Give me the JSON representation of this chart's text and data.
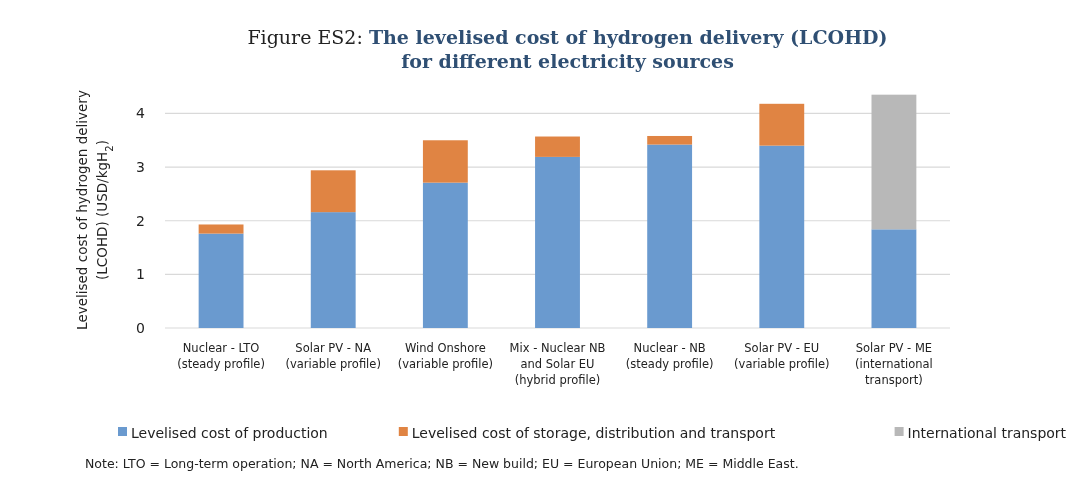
{
  "chart_data": {
    "type": "bar",
    "stacked": true,
    "title": "Figure ES2: The levelised cost of hydrogen delivery (LCOHD)\nfor different electricity sources",
    "ylabel": "Levelised cost of hydrogen delivery\n(LCOHD) (USD/kgH$_{2}$)",
    "categories": [
      "Nuclear - LTO\n(steady profile)",
      "Solar PV - NA\n(variable profile)",
      "Wind Onshore\n(variable profile)",
      "Mix - Nuclear NB\nand Solar EU\n(hybrid profile)",
      "Nuclear - NB\n(steady profile)",
      "Solar PV - EU\n(variable profile)",
      "Solar PV - ME\n(international\ntransport)"
    ],
    "series": [
      {
        "name": "Levelised cost of production",
        "color": "#6a9acf",
        "values": [
          1.76,
          2.16,
          2.71,
          3.19,
          3.42,
          3.4,
          1.84
        ]
      },
      {
        "name": "Levelised cost of storage, distribution and transport",
        "color": "#e08443",
        "values": [
          0.17,
          0.78,
          0.79,
          0.38,
          0.16,
          0.78,
          null
        ]
      },
      {
        "name": "International transport",
        "color": "#b8b8b8",
        "values": [
          null,
          null,
          null,
          null,
          null,
          null,
          2.51
        ]
      }
    ],
    "ylim": [
      0,
      4.4
    ],
    "yticks": [
      0,
      1,
      2,
      3,
      4
    ],
    "grid": "y",
    "legend": "bottom",
    "annotations": [
      "Note: LTO = Long-term operation; NA = North America; NB = New build; EU = European Union; ME = Middle East."
    ]
  }
}
